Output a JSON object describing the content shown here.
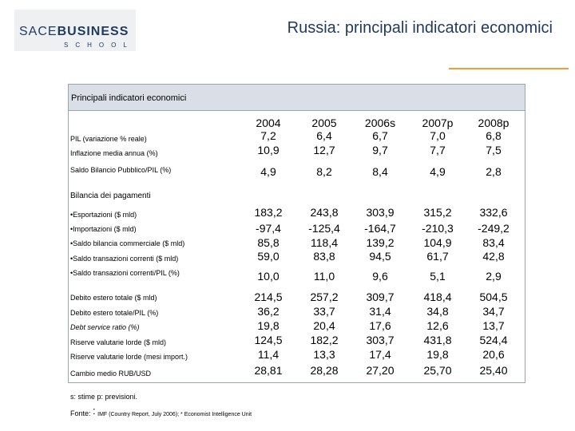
{
  "logo": {
    "top_light": "SACE",
    "top_bold": "BUSINESS",
    "bottom": "SCHOOL"
  },
  "title": "Russia: principali indicatori economici",
  "table": {
    "header_title": "Principali indicatori economici",
    "years": [
      "2004",
      "2005",
      "2006s",
      "2007p",
      "2008p"
    ],
    "rows": [
      {
        "label": "PIL (variazione % reale)",
        "values": [
          "7,2",
          "6,4",
          "6,7",
          "7,0",
          "6,8"
        ]
      },
      {
        "label": "Inflazione media annua (%)",
        "values": [
          "10,9",
          "12,7",
          "9,7",
          "7,7",
          "7,5"
        ]
      },
      {
        "label": "Saldo Bilancio Pubblico/PIL (%)",
        "values": [
          "4,9",
          "8,2",
          "8,4",
          "4,9",
          "2,8"
        ]
      },
      {
        "label": "Bilancia dei pagamenti",
        "values": []
      },
      {
        "label": "•Esportazioni ($ mld)",
        "values": [
          "183,2",
          "243,8",
          "303,9",
          "315,2",
          "332,6"
        ]
      },
      {
        "label": "•Importazioni ($ mld)",
        "values": [
          "-97,4",
          "-125,4",
          "-164,7",
          "-210,3",
          "-249,2"
        ]
      },
      {
        "label": "•Saldo bilancia commerciale ($ mld)",
        "values": [
          "85,8",
          "118,4",
          "139,2",
          "104,9",
          "83,4"
        ]
      },
      {
        "label": "•Saldo transazioni correnti ($ mld)",
        "values": [
          "59,0",
          "83,8",
          "94,5",
          "61,7",
          "42,8"
        ]
      },
      {
        "label": "•Saldo transazioni correnti/PIL (%)",
        "values": [
          "10,0",
          "11,0",
          "9,6",
          "5,1",
          "2,9"
        ]
      },
      {
        "label": "Debito estero totale ($ mld)",
        "values": [
          "214,5",
          "257,2",
          "309,7",
          "418,4",
          "504,5"
        ]
      },
      {
        "label": "Debito estero totale/PIL (%)",
        "values": [
          "36,2",
          "33,7",
          "31,4",
          "34,8",
          "34,7"
        ]
      },
      {
        "label": "Debt service ratio (%)",
        "values": [
          "19,8",
          "20,4",
          "17,6",
          "12,6",
          "13,7"
        ]
      },
      {
        "label": "Riserve valutarie lorde ($ mld)",
        "values": [
          "124,5",
          "182,2",
          "303,7",
          "431,8",
          "524,4"
        ]
      },
      {
        "label": "Riserve valutarie lorde (mesi import.)",
        "values": [
          "11,4",
          "13,3",
          "17,4",
          "19,8",
          "20,6"
        ]
      },
      {
        "label": "Cambio medio RUB/USD",
        "values": [
          "28,81",
          "28,28",
          "27,20",
          "25,70",
          "25,40"
        ]
      }
    ]
  },
  "note": "s: stime p: previsioni.",
  "source": {
    "prefix": "Fonte: ",
    "colon": ":",
    "text": "IMF (Country Report, July 2006); * Economist Intelligence Unit"
  },
  "colors": {
    "title": "#1f3a5f",
    "accent_rule": "#f39c34",
    "header_bg": "#d9dee7",
    "border": "#9aa5b4"
  }
}
